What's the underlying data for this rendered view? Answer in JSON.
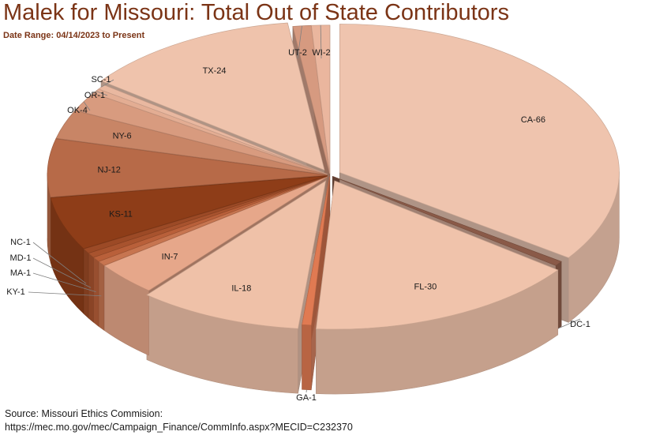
{
  "header": {
    "title": "Malek for Missouri: Total Out of State Contributors",
    "date_range_label": "Date Range: ",
    "date_range_value": "04/14/2023 to Present"
  },
  "footer": {
    "source_line1": "Source: Missouri Ethics Commision:",
    "source_line2": "https://mec.mo.gov/mec/Campaign_Finance/CommInfo.aspx?MECID=C232370"
  },
  "chart_data": {
    "type": "pie",
    "style": "3d-exploded",
    "legend": "none",
    "slices": [
      {
        "label": "CA-66",
        "state": "CA",
        "value": 66,
        "color": "#efc4ae"
      },
      {
        "label": "DC-1",
        "state": "DC",
        "value": 1,
        "color": "#8a5a48"
      },
      {
        "label": "FL-30",
        "state": "FL",
        "value": 30,
        "color": "#f0c3ab"
      },
      {
        "label": "GA-1",
        "state": "GA",
        "value": 1,
        "color": "#e07a52"
      },
      {
        "label": "IL-18",
        "state": "IL",
        "value": 18,
        "color": "#efc1a8"
      },
      {
        "label": "IN-7",
        "state": "IN",
        "value": 7,
        "color": "#e6a78a"
      },
      {
        "label": "KY-1",
        "state": "KY",
        "value": 1,
        "color": "#c77550"
      },
      {
        "label": "MA-1",
        "state": "MA",
        "value": 1,
        "color": "#b9603a"
      },
      {
        "label": "MD-1",
        "state": "MD",
        "value": 1,
        "color": "#a8532e"
      },
      {
        "label": "NC-1",
        "state": "NC",
        "value": 1,
        "color": "#9c4a26"
      },
      {
        "label": "KS-11",
        "state": "KS",
        "value": 11,
        "color": "#8e3d18"
      },
      {
        "label": "NJ-12",
        "state": "NJ",
        "value": 12,
        "color": "#b76a48"
      },
      {
        "label": "NY-6",
        "state": "NY",
        "value": 6,
        "color": "#c88566"
      },
      {
        "label": "OK-4",
        "state": "OK",
        "value": 4,
        "color": "#d89b7f"
      },
      {
        "label": "OR-1",
        "state": "OR",
        "value": 1,
        "color": "#e3ad93"
      },
      {
        "label": "SC-1",
        "state": "SC",
        "value": 1,
        "color": "#e9b8a0"
      },
      {
        "label": "TX-24",
        "state": "TX",
        "value": 24,
        "color": "#efc3ac"
      },
      {
        "label": "UT-2",
        "state": "UT",
        "value": 2,
        "color": "#d69a80"
      },
      {
        "label": "WI-2",
        "state": "WI",
        "value": 2,
        "color": "#eab69e"
      }
    ]
  }
}
